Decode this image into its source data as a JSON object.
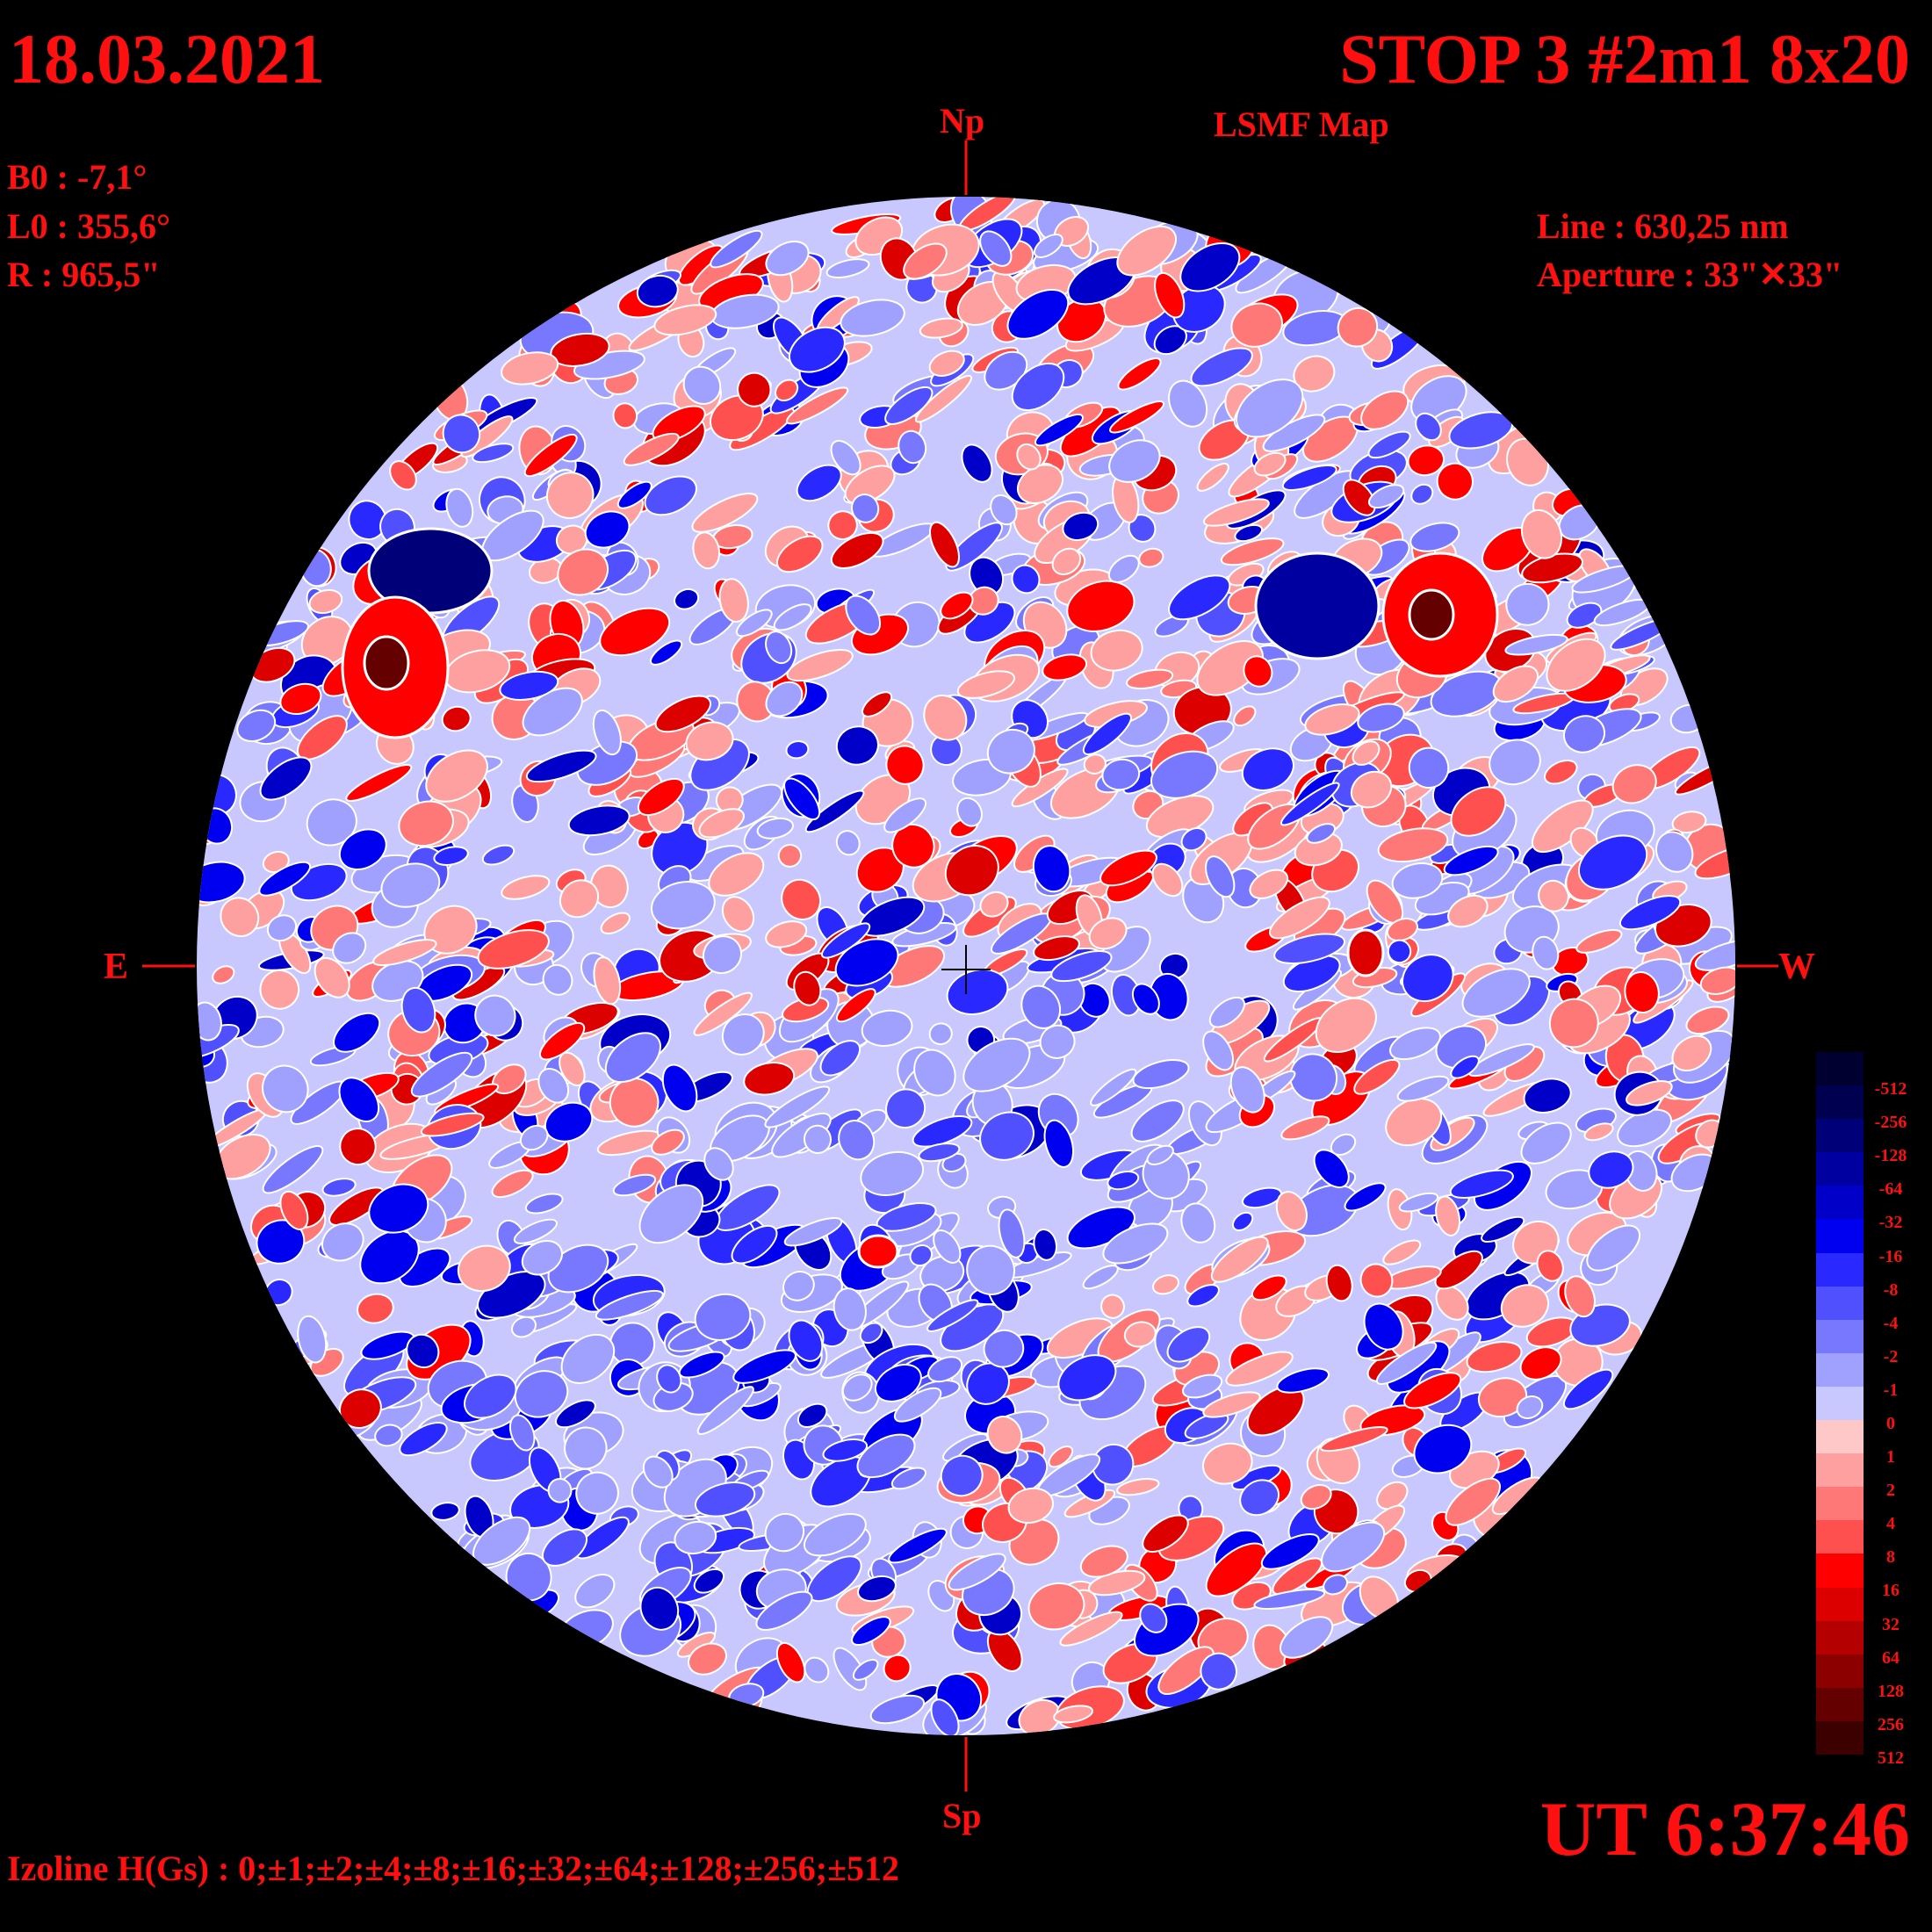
{
  "header": {
    "date": "18.03.2021",
    "title": "STOP 3 #2m1 8x20",
    "subtitle": "LSMF  Map"
  },
  "parameters": {
    "b0": "B0 : -7,1°",
    "l0": "L0 : 355,6°",
    "radius": "R  : 965,5\"",
    "line": "Line :  630,25 nm",
    "aperture": "Aperture : 33\"✕33\""
  },
  "directions": {
    "north": "Np",
    "south": "Sp",
    "east": "E",
    "west": "W"
  },
  "footer": {
    "ut": "UT 6:37:46",
    "izoline": "Izoline H(Gs) : 0;±1;±2;±4;±8;±16;±32;±64;±128;±256;±512"
  },
  "legend": {
    "levels": [
      {
        "label": "-512",
        "color": "#000030"
      },
      {
        "label": "-256",
        "color": "#000050"
      },
      {
        "label": "-128",
        "color": "#000078"
      },
      {
        "label": "-64",
        "color": "#0000a0"
      },
      {
        "label": "-32",
        "color": "#0000c8"
      },
      {
        "label": "-16",
        "color": "#0000f0"
      },
      {
        "label": "-8",
        "color": "#2828ff"
      },
      {
        "label": "-4",
        "color": "#5050ff"
      },
      {
        "label": "-2",
        "color": "#7878ff"
      },
      {
        "label": "-1",
        "color": "#a0a0ff"
      },
      {
        "label": "0",
        "color": "#c8c8ff"
      },
      {
        "label": "1",
        "color": "#ffc8c8"
      },
      {
        "label": "2",
        "color": "#ffa0a0"
      },
      {
        "label": "4",
        "color": "#ff7878"
      },
      {
        "label": "8",
        "color": "#ff5050"
      },
      {
        "label": "16",
        "color": "#ff0000"
      },
      {
        "label": "32",
        "color": "#dc0000"
      },
      {
        "label": "64",
        "color": "#b40000"
      },
      {
        "label": "128",
        "color": "#8c0000"
      },
      {
        "label": "256",
        "color": "#640000"
      },
      {
        "label": "512",
        "color": "#3c0000"
      }
    ]
  },
  "colors": {
    "text": "#ff1010",
    "background": "#000000",
    "disk_base": "#c8c8ff"
  }
}
